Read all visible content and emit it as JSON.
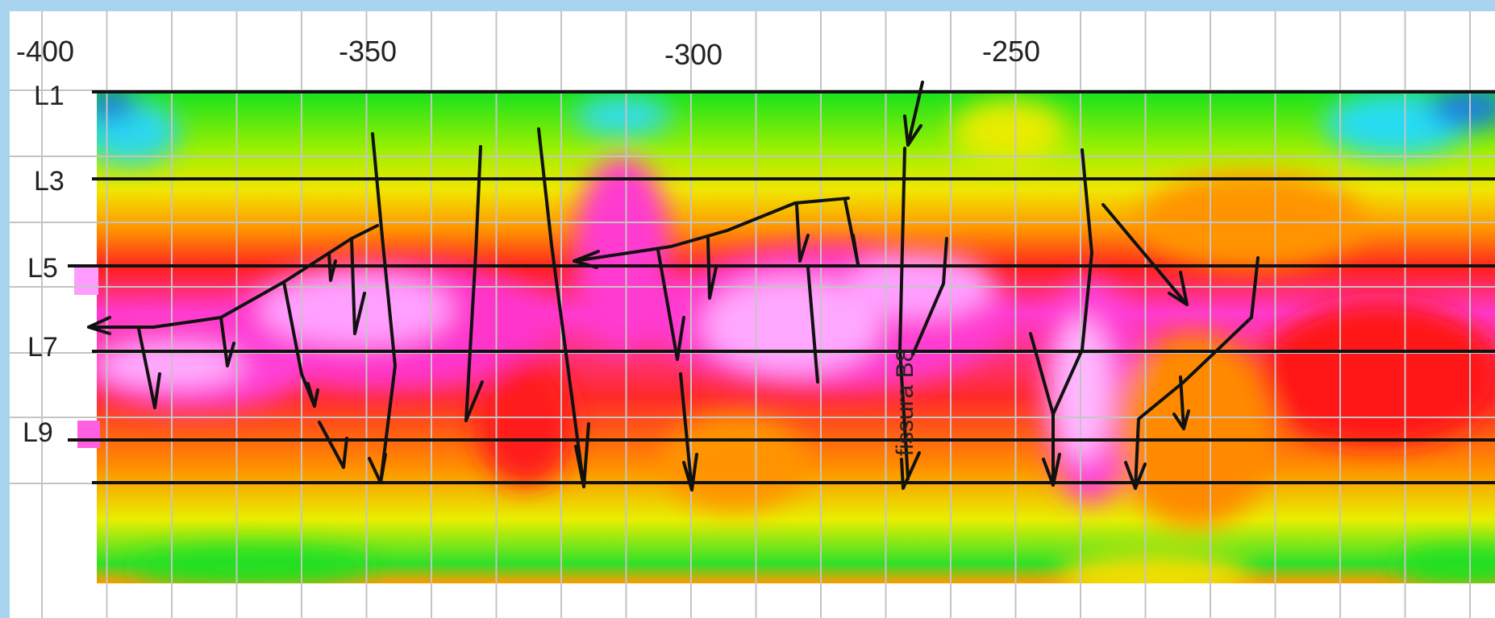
{
  "x_axis": {
    "tick_labels": [
      "-400",
      "-350",
      "-300",
      "-250"
    ]
  },
  "survey_lines": [
    "L1",
    "L3",
    "L5",
    "L7",
    "L9"
  ],
  "annotation": "fissura B8",
  "colors": {
    "frame": "#a8d4f0",
    "grid": "#c4c4c4",
    "ink": "#111111",
    "scale_low": "#1e6fe0",
    "scale_cyan": "#28d8f0",
    "scale_green": "#12e61e",
    "scale_yellow": "#e8f000",
    "scale_orange": "#ff9a00",
    "scale_red": "#ff1a1a",
    "scale_magenta": "#ff30d0",
    "scale_high": "#ff9cff"
  }
}
